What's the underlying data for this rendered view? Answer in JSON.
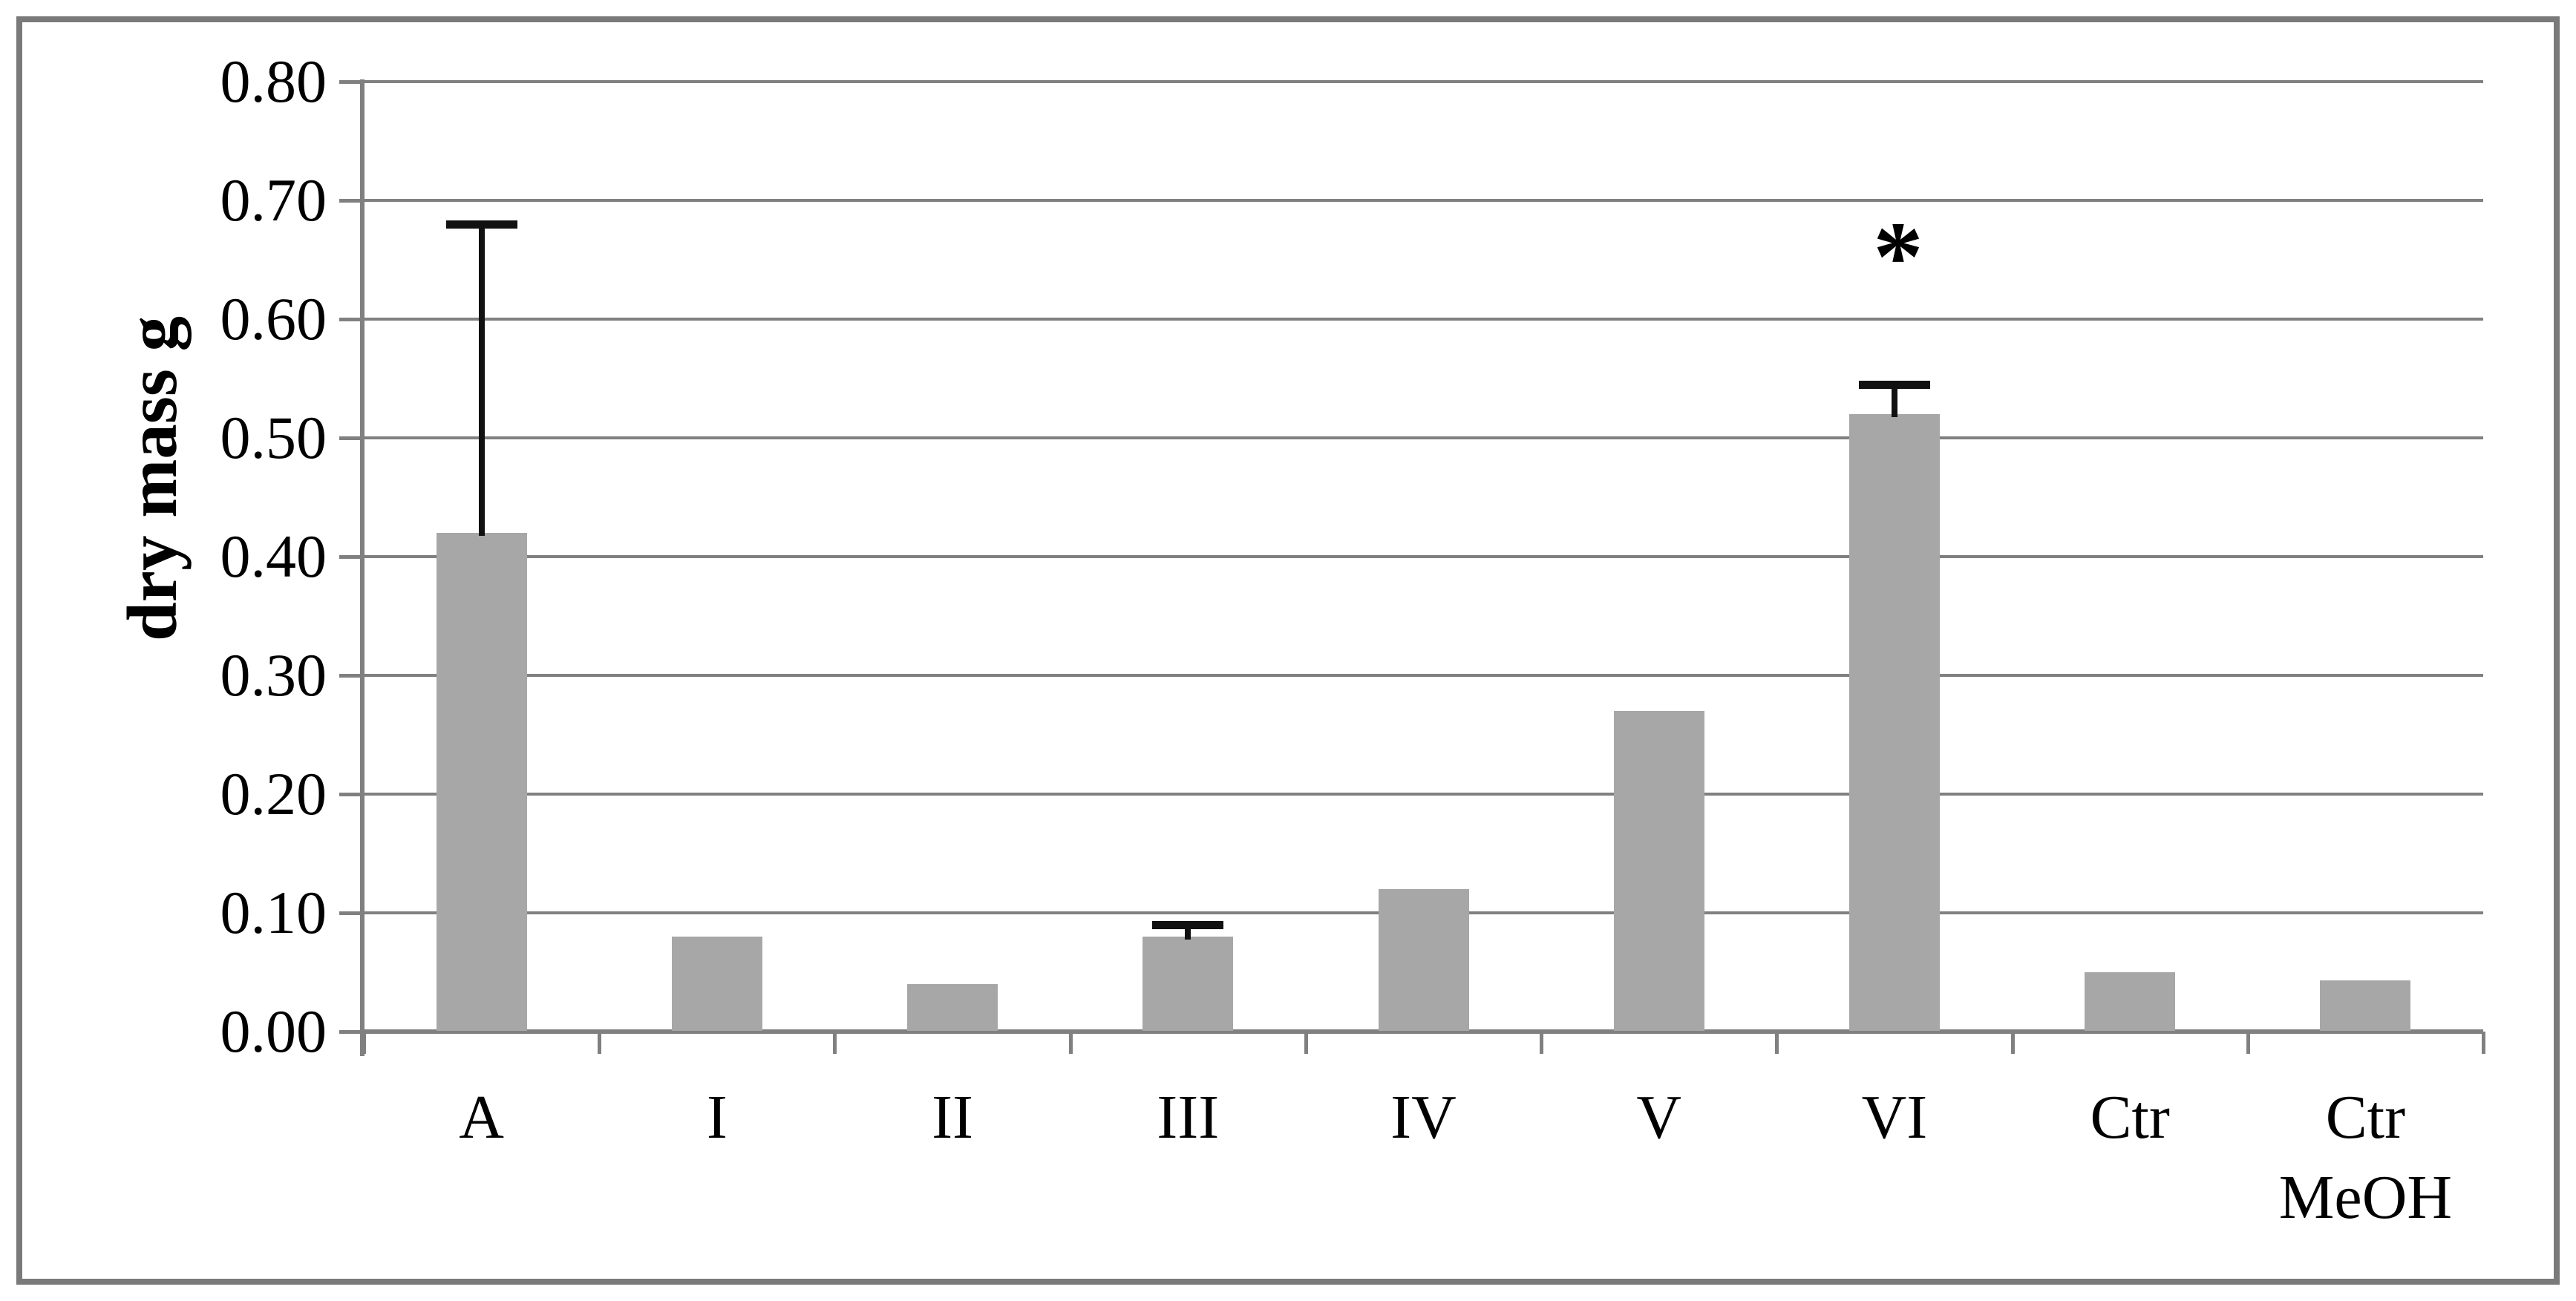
{
  "figure": {
    "border_color": "#7a7a7a",
    "background_color": "#ffffff",
    "bar_color": "#a7a7a7",
    "gridline_color": "#808080",
    "error_bar_color": "#111111"
  },
  "chart_data": {
    "type": "bar",
    "title": "",
    "xlabel": "",
    "ylabel": "dry mass g",
    "ylim": [
      0,
      0.8
    ],
    "grid": true,
    "legend": null,
    "yticks": [
      0.8,
      0.7,
      0.6,
      0.5,
      0.4,
      0.3,
      0.2,
      0.1,
      0.0
    ],
    "ytick_labels": [
      "0.80",
      "0.70",
      "0.60",
      "0.50",
      "0.40",
      "0.30",
      "0.20",
      "0.10",
      "0.00"
    ],
    "categories": [
      "A",
      "I",
      "II",
      "III",
      "IV",
      "V",
      "VI",
      "Ctr",
      "Ctr MeOH"
    ],
    "xtick_label_lines": [
      [
        "A"
      ],
      [
        "I"
      ],
      [
        "II"
      ],
      [
        "III"
      ],
      [
        "IV"
      ],
      [
        "V"
      ],
      [
        "VI"
      ],
      [
        "Ctr"
      ],
      [
        "Ctr",
        "MeOH"
      ]
    ],
    "values": [
      0.42,
      0.08,
      0.04,
      0.08,
      0.12,
      0.27,
      0.52,
      0.05,
      0.043
    ],
    "error_up": [
      0.26,
      null,
      null,
      0.01,
      null,
      null,
      0.025,
      null,
      null
    ],
    "annotations": [
      {
        "text": "*",
        "category": "VI",
        "y": 0.66,
        "meaning": "significance-marker"
      }
    ]
  }
}
